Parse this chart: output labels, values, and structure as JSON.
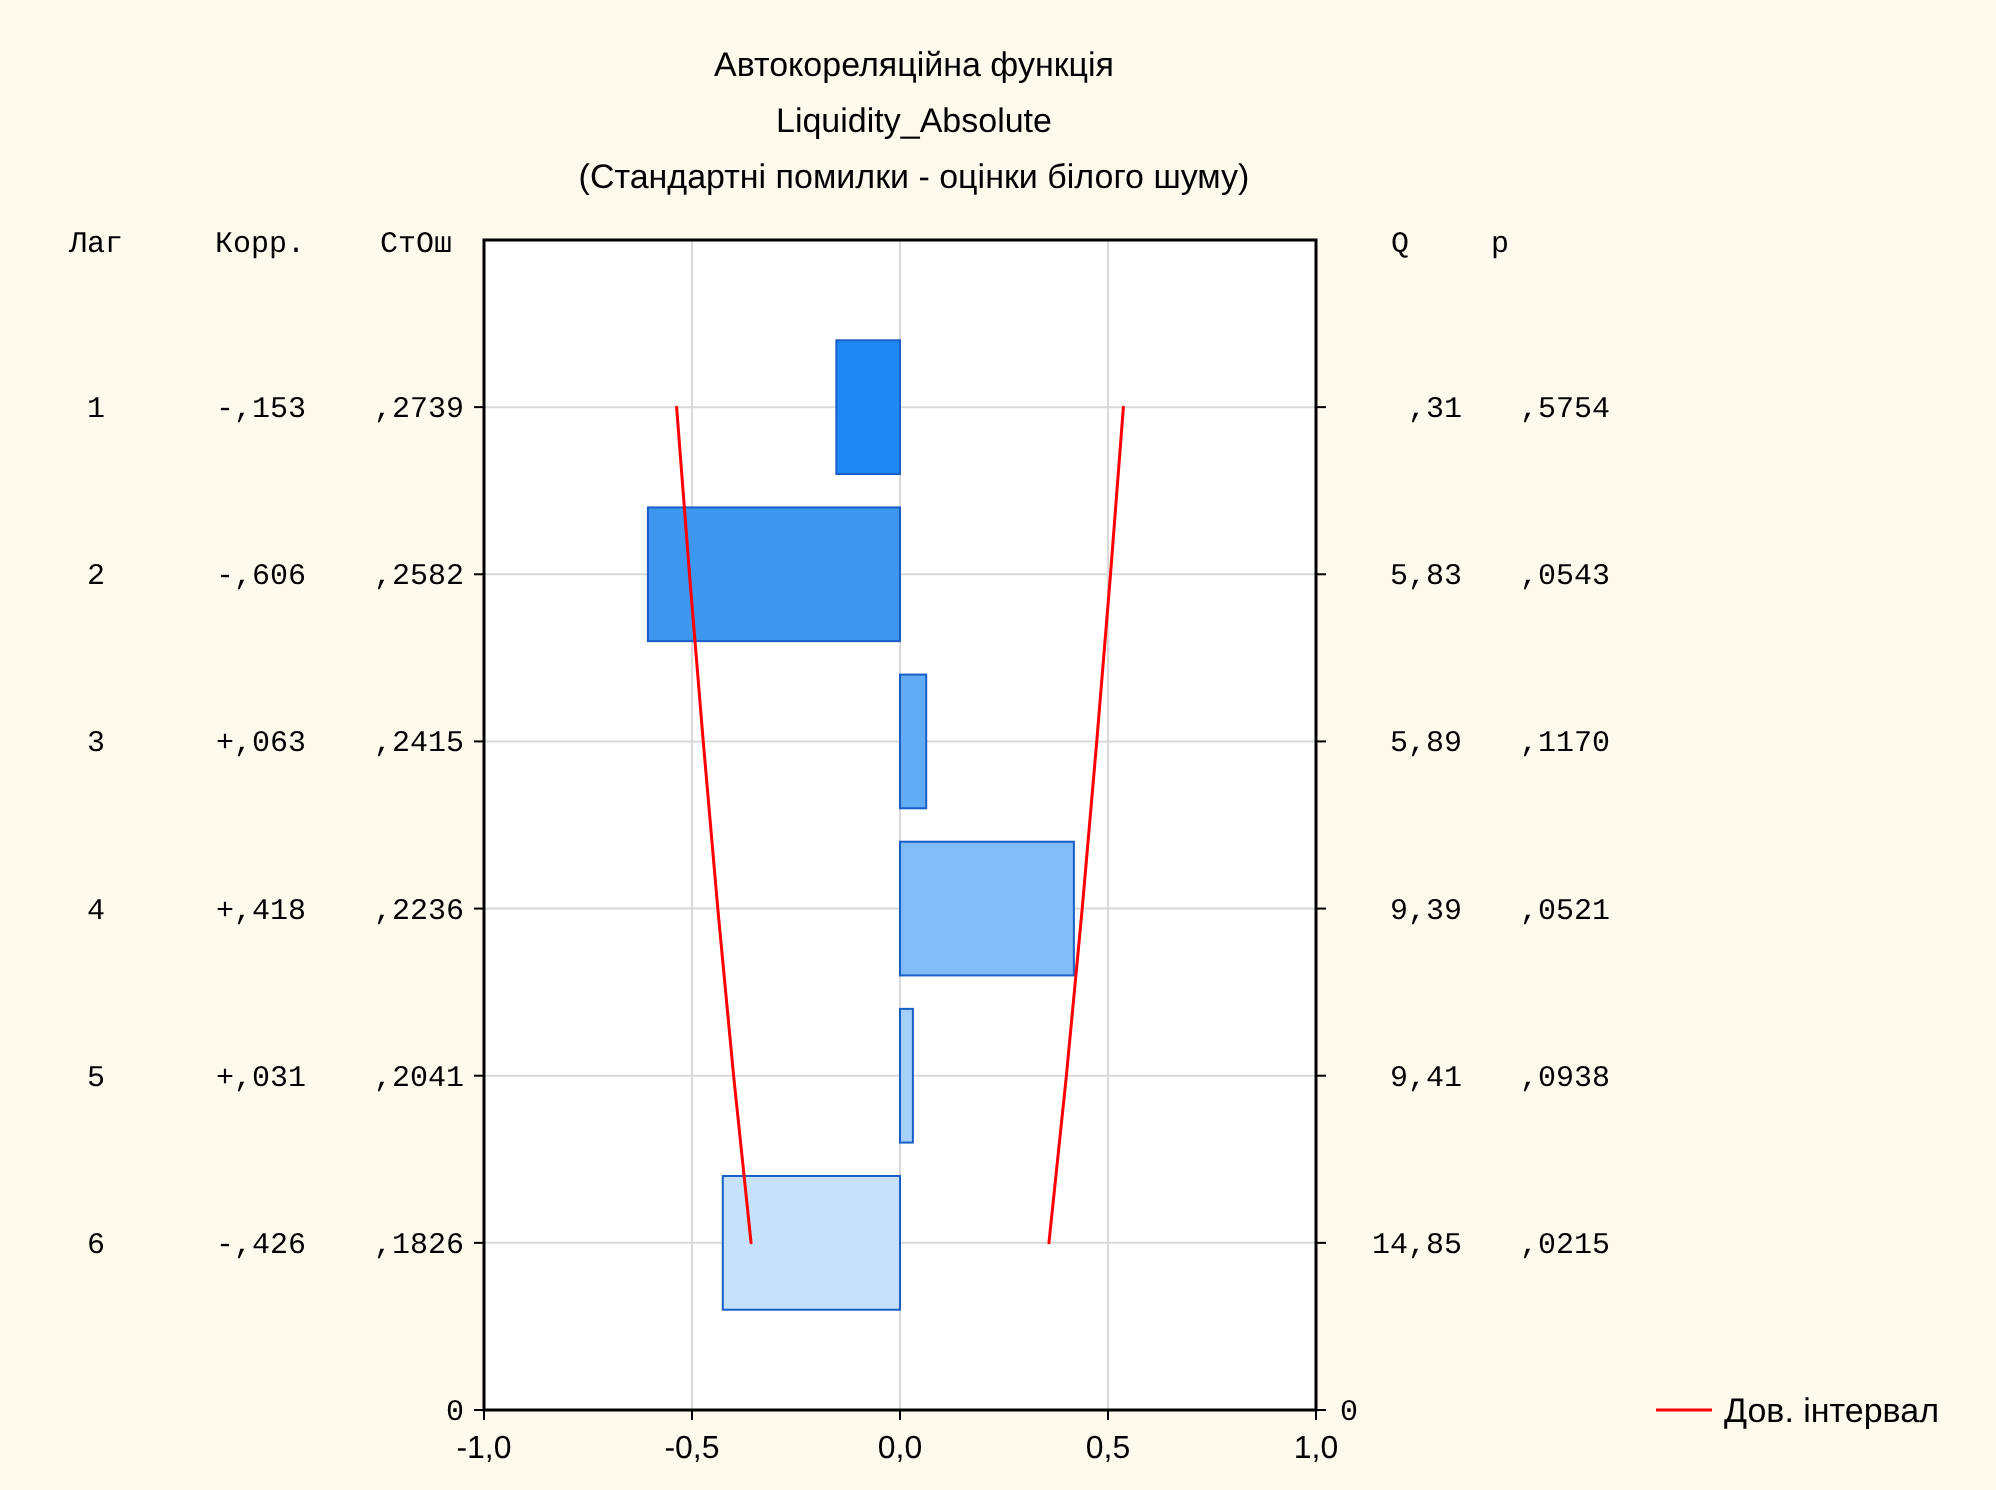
{
  "chart_data": {
    "type": "bar",
    "orientation": "horizontal",
    "title": "Автокореляційна функція",
    "subtitle": "Liquidity_Absolute\n(Стандартні помилки - оцінки білого шуму)",
    "categories": [
      null,
      null,
      null,
      null,
      null,
      null,
      null
    ],
    "series": [
      {
        "values": [
          -0.153,
          -0.606,
          0.063,
          0.418,
          0.031,
          -0.426,
          null
        ],
        "colors": [
          "#1e88f5",
          "#3d97f0",
          "#62abf5",
          "#82bcf7",
          "#a6d0f7",
          "#c6e2fa",
          null
        ]
      },
      {
        "type": "line",
        "name": "Дов. інтервал",
        "color": "#ff0000",
        "values": [
          0.537,
          0.506,
          0.473,
          0.438,
          0.4,
          0.358,
          null
        ]
      },
      {
        "type": "line",
        "color": "#ff0000",
        "values": [
          -0.537,
          -0.506,
          -0.473,
          -0.438,
          -0.4,
          -0.358,
          null
        ]
      }
    ],
    "xlim": [
      -1,
      1
    ],
    "xticks": [
      {
        "value": -1,
        "label": "-1,0"
      },
      {
        "value": -0.5,
        "label": "-0,5"
      },
      {
        "value": 0,
        "label": "0,0"
      },
      {
        "value": 0.5,
        "label": "0,5"
      },
      {
        "value": 1,
        "label": "1,0"
      }
    ],
    "grid": true,
    "legend": "bottom right",
    "annotations": [
      "Лаг",
      "Корр.",
      "СтОш",
      "Q",
      "p",
      "1",
      "-,153",
      ",2739",
      ",31",
      ",5754",
      "2",
      "-,606",
      ",2582",
      "5,83",
      ",0543",
      "3",
      "+,063",
      ",2415",
      "5,89",
      ",1170",
      "4",
      "+,418",
      ",2236",
      "9,39",
      ",0521",
      "5",
      "+,031",
      ",2041",
      "9,41",
      ",0938",
      "6",
      "-,426",
      ",1826",
      "14,85",
      ",0215",
      "0",
      "0"
    ]
  }
}
